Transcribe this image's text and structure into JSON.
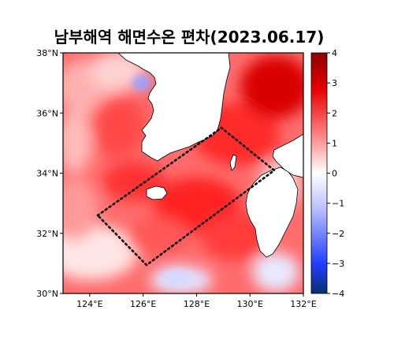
{
  "title": "남부해역 해면수온 편차(2023.06.17)",
  "lat_ticks": [
    {
      "value": 38,
      "label": "38°N"
    },
    {
      "value": 36,
      "label": "36°N"
    },
    {
      "value": 34,
      "label": "34°N"
    },
    {
      "value": 32,
      "label": "32°N"
    },
    {
      "value": 30,
      "label": "30°N"
    }
  ],
  "lon_ticks": [
    {
      "value": 124,
      "label": "124°E"
    },
    {
      "value": 126,
      "label": "126°E"
    },
    {
      "value": 128,
      "label": "128°E"
    },
    {
      "value": 130,
      "label": "130°E"
    },
    {
      "value": 132,
      "label": "132°E"
    }
  ],
  "colorbar": {
    "min": -4,
    "max": 4,
    "ticks": [
      {
        "value": 4,
        "label": "4"
      },
      {
        "value": 3,
        "label": "3"
      },
      {
        "value": 2,
        "label": "2"
      },
      {
        "value": 1,
        "label": "1"
      },
      {
        "value": 0,
        "label": "0"
      },
      {
        "value": -1,
        "label": "−1"
      },
      {
        "value": -2,
        "label": "−2"
      },
      {
        "value": -3,
        "label": "−3"
      },
      {
        "value": -4,
        "label": "−4"
      }
    ],
    "colors": [
      "#08306b",
      "#1f3cff",
      "#9fa8ff",
      "#ffffff",
      "#ff6a6a",
      "#e60000",
      "#8b0000"
    ]
  },
  "land_color": "#ffffff",
  "anomaly_colors": {
    "strong": "#d60000",
    "medium": "#f02020",
    "light": "#ff7070",
    "pale": "#ffc0c0",
    "cool": "#d8dcff"
  }
}
